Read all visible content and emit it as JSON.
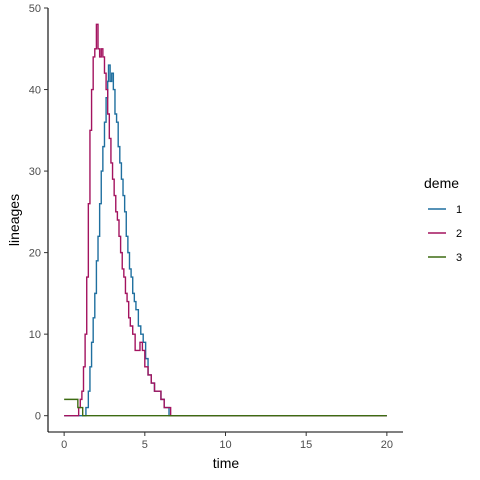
{
  "chart_data": {
    "type": "line",
    "xlabel": "time",
    "ylabel": "lineages",
    "xlim": [
      -1,
      21
    ],
    "ylim": [
      -2,
      50
    ],
    "xticks": [
      0,
      5,
      10,
      15,
      20
    ],
    "yticks": [
      0,
      10,
      20,
      30,
      40,
      50
    ],
    "grid": false,
    "legend": {
      "title": "deme",
      "position": "right"
    },
    "series": [
      {
        "name": "1",
        "color": "#1f6f9f",
        "points": [
          [
            0,
            0
          ],
          [
            1.2,
            0
          ],
          [
            1.35,
            1
          ],
          [
            1.5,
            3
          ],
          [
            1.6,
            6
          ],
          [
            1.7,
            9
          ],
          [
            1.8,
            12
          ],
          [
            1.9,
            15
          ],
          [
            2.0,
            19
          ],
          [
            2.1,
            22
          ],
          [
            2.2,
            26
          ],
          [
            2.3,
            30
          ],
          [
            2.4,
            33
          ],
          [
            2.5,
            36
          ],
          [
            2.6,
            39
          ],
          [
            2.7,
            41
          ],
          [
            2.75,
            43
          ],
          [
            2.85,
            41
          ],
          [
            2.95,
            42
          ],
          [
            3.05,
            40
          ],
          [
            3.15,
            37
          ],
          [
            3.25,
            36
          ],
          [
            3.35,
            33
          ],
          [
            3.45,
            31
          ],
          [
            3.55,
            29
          ],
          [
            3.65,
            27
          ],
          [
            3.75,
            25
          ],
          [
            3.85,
            22
          ],
          [
            3.95,
            20
          ],
          [
            4.05,
            18
          ],
          [
            4.15,
            17
          ],
          [
            4.25,
            15
          ],
          [
            4.35,
            14
          ],
          [
            4.45,
            13
          ],
          [
            4.6,
            11
          ],
          [
            4.75,
            10
          ],
          [
            4.9,
            9
          ],
          [
            5.05,
            7
          ],
          [
            5.2,
            5
          ],
          [
            5.4,
            4
          ],
          [
            5.6,
            3
          ],
          [
            5.8,
            3
          ],
          [
            6.0,
            2
          ],
          [
            6.2,
            1
          ],
          [
            6.4,
            1
          ],
          [
            6.5,
            0
          ],
          [
            20,
            0
          ]
        ]
      },
      {
        "name": "2",
        "color": "#a3135f",
        "points": [
          [
            0,
            0
          ],
          [
            0.8,
            0
          ],
          [
            0.9,
            1
          ],
          [
            1.0,
            2
          ],
          [
            1.1,
            3
          ],
          [
            1.2,
            6
          ],
          [
            1.3,
            10
          ],
          [
            1.4,
            17
          ],
          [
            1.5,
            26
          ],
          [
            1.6,
            35
          ],
          [
            1.7,
            40
          ],
          [
            1.8,
            44
          ],
          [
            1.9,
            45
          ],
          [
            2.0,
            48
          ],
          [
            2.1,
            45
          ],
          [
            2.2,
            44
          ],
          [
            2.3,
            45
          ],
          [
            2.4,
            44
          ],
          [
            2.5,
            42
          ],
          [
            2.6,
            40
          ],
          [
            2.7,
            37
          ],
          [
            2.8,
            34
          ],
          [
            2.9,
            31
          ],
          [
            3.0,
            29
          ],
          [
            3.1,
            27
          ],
          [
            3.2,
            25
          ],
          [
            3.3,
            24
          ],
          [
            3.4,
            22
          ],
          [
            3.5,
            20
          ],
          [
            3.6,
            18
          ],
          [
            3.7,
            17
          ],
          [
            3.8,
            15
          ],
          [
            3.9,
            14
          ],
          [
            4.0,
            12
          ],
          [
            4.1,
            11
          ],
          [
            4.25,
            10
          ],
          [
            4.4,
            8
          ],
          [
            4.55,
            8
          ],
          [
            4.7,
            9
          ],
          [
            4.85,
            8
          ],
          [
            5.0,
            6
          ],
          [
            5.2,
            5
          ],
          [
            5.4,
            4
          ],
          [
            5.6,
            3
          ],
          [
            5.8,
            3
          ],
          [
            6.0,
            2
          ],
          [
            6.2,
            1
          ],
          [
            6.4,
            1
          ],
          [
            6.6,
            0
          ],
          [
            20,
            0
          ]
        ]
      },
      {
        "name": "3",
        "color": "#3d6b12",
        "points": [
          [
            0,
            2
          ],
          [
            0.8,
            2
          ],
          [
            0.85,
            1
          ],
          [
            1.1,
            1
          ],
          [
            1.15,
            0
          ],
          [
            20,
            0
          ]
        ]
      }
    ]
  }
}
